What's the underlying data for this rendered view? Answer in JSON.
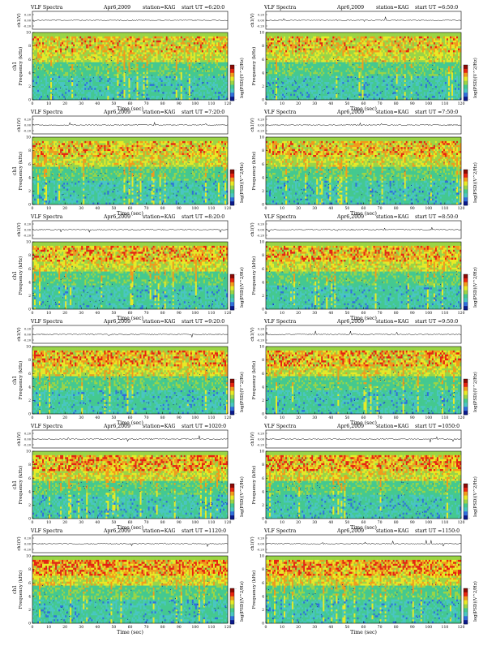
{
  "page": {
    "title_prefix": "VLF Spectra",
    "date": "Apr6,2009",
    "station": "station=KAG"
  },
  "labels": {
    "ch_axis": "ch1(V)",
    "ch_axis_right": "ch1(V)",
    "freq_axis_left_line1": "ch1",
    "freq_axis_left_line2": "Frequency (kHz)",
    "freq_axis_right": "Frequency (kHz)",
    "time_axis": "Time (sec)",
    "colorbar_label": "log(PSD)(V^2/Hz)",
    "ch_ticks": [
      "0.20",
      "0.00",
      "-0.20"
    ]
  },
  "panels": [
    {
      "start": "start UT =6:20:0"
    },
    {
      "start": "start UT =6:50:0"
    },
    {
      "start": "start UT =7:20:0"
    },
    {
      "start": "start UT =7:50:0"
    },
    {
      "start": "start UT =8:20:0"
    },
    {
      "start": "start UT =8:50:0"
    },
    {
      "start": "start UT =9:20:0"
    },
    {
      "start": "start UT =9:50:0"
    },
    {
      "start": "start UT =1020:0"
    },
    {
      "start": "start UT =1050:0"
    },
    {
      "start": "start UT =1120:0"
    },
    {
      "start": "start UT =1150:0"
    }
  ],
  "colors": {
    "red": "#e8230f",
    "orange": "#f39a1a",
    "yellow": "#e9ea25",
    "ygreen": "#9bd545",
    "green": "#44c98f",
    "cyan": "#49c6c2",
    "blue": "#2f6fdc",
    "navy": "#0b1a8c",
    "darkred": "#8c0a05"
  },
  "chart_data": {
    "type": "heatmap",
    "x_ticks": [
      "0",
      "10",
      "20",
      "30",
      "40",
      "50",
      "60",
      "70",
      "80",
      "90",
      "100",
      "110",
      "120"
    ],
    "y_ticks": [
      "0",
      "2",
      "4",
      "6",
      "8",
      "10"
    ],
    "xlim": [
      0,
      120
    ],
    "ylim": [
      0,
      10
    ],
    "colorbar_ticks": [
      "-",
      "-"
    ]
  }
}
